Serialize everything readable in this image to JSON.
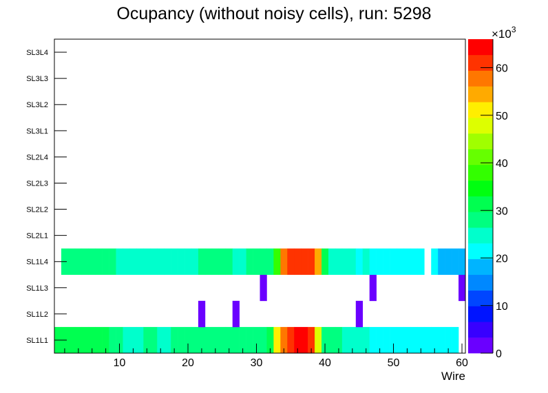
{
  "chart_data": {
    "type": "heatmap",
    "title": "Ocupancy (without noisy cells), run: 5298",
    "xlabel": "Wire",
    "ylabel": "",
    "xlim": [
      0.5,
      60.5
    ],
    "x_ticks": [
      "10",
      "20",
      "30",
      "40",
      "50",
      "60"
    ],
    "y_categories": [
      "SL1L1",
      "SL1L2",
      "SL1L3",
      "SL1L4",
      "SL2L1",
      "SL2L2",
      "SL2L3",
      "SL2L4",
      "SL3L1",
      "SL3L2",
      "SL3L3",
      "SL3L4"
    ],
    "zlim": [
      0,
      66000
    ],
    "z_multiplier_label": "×10",
    "z_multiplier_exp": "3",
    "z_ticks": [
      "0",
      "10",
      "20",
      "30",
      "40",
      "50",
      "60"
    ],
    "palette": [
      "#6a00ff",
      "#3800ff",
      "#0014ff",
      "#0046ff",
      "#0088ff",
      "#00b4ff",
      "#00ffff",
      "#00ffcc",
      "#00ff80",
      "#00ff50",
      "#00ff10",
      "#33ff00",
      "#66ff00",
      "#a0ff00",
      "#ddff00",
      "#ffee00",
      "#ffaa00",
      "#ff7700",
      "#ff3300",
      "#ff0000"
    ],
    "rows": [
      {
        "layer": "SL1L1",
        "bins": [
          [
            1,
            31000
          ],
          [
            2,
            31000
          ],
          [
            3,
            31000
          ],
          [
            4,
            31000
          ],
          [
            5,
            31000
          ],
          [
            6,
            31000
          ],
          [
            7,
            31000
          ],
          [
            8,
            31000
          ],
          [
            9,
            28000
          ],
          [
            10,
            28000
          ],
          [
            11,
            25000
          ],
          [
            12,
            25000
          ],
          [
            13,
            25000
          ],
          [
            14,
            28000
          ],
          [
            15,
            28000
          ],
          [
            16,
            25000
          ],
          [
            17,
            25000
          ],
          [
            18,
            28000
          ],
          [
            19,
            28000
          ],
          [
            20,
            28000
          ],
          [
            21,
            28000
          ],
          [
            22,
            28000
          ],
          [
            23,
            28000
          ],
          [
            24,
            28000
          ],
          [
            25,
            28000
          ],
          [
            26,
            28000
          ],
          [
            27,
            28000
          ],
          [
            28,
            28000
          ],
          [
            29,
            28000
          ],
          [
            30,
            28000
          ],
          [
            31,
            28000
          ],
          [
            32,
            31000
          ],
          [
            33,
            51000
          ],
          [
            34,
            58000
          ],
          [
            35,
            61000
          ],
          [
            36,
            64500
          ],
          [
            37,
            64500
          ],
          [
            38,
            61000
          ],
          [
            39,
            48000
          ],
          [
            40,
            28000
          ],
          [
            41,
            28000
          ],
          [
            42,
            28000
          ],
          [
            43,
            25000
          ],
          [
            44,
            25000
          ],
          [
            45,
            25000
          ],
          [
            46,
            25000
          ],
          [
            47,
            21000
          ],
          [
            48,
            21000
          ],
          [
            49,
            21000
          ],
          [
            50,
            21000
          ],
          [
            51,
            21000
          ],
          [
            52,
            21000
          ],
          [
            53,
            21000
          ],
          [
            54,
            21000
          ],
          [
            55,
            21000
          ],
          [
            56,
            21000
          ],
          [
            57,
            21000
          ],
          [
            58,
            21000
          ],
          [
            59,
            21000
          ]
        ]
      },
      {
        "layer": "SL1L2",
        "bins": [
          [
            22,
            1500
          ],
          [
            27,
            1500
          ],
          [
            45,
            1500
          ]
        ]
      },
      {
        "layer": "SL1L3",
        "bins": [
          [
            31,
            1500
          ],
          [
            47,
            1500
          ],
          [
            60,
            1500
          ]
        ]
      },
      {
        "layer": "SL1L4",
        "bins": [
          [
            2,
            28000
          ],
          [
            3,
            28000
          ],
          [
            4,
            28000
          ],
          [
            5,
            28000
          ],
          [
            6,
            28000
          ],
          [
            7,
            28000
          ],
          [
            8,
            28000
          ],
          [
            9,
            28000
          ],
          [
            10,
            25000
          ],
          [
            11,
            25000
          ],
          [
            12,
            25000
          ],
          [
            13,
            25000
          ],
          [
            14,
            25000
          ],
          [
            15,
            25000
          ],
          [
            16,
            25000
          ],
          [
            17,
            25000
          ],
          [
            18,
            25000
          ],
          [
            19,
            25000
          ],
          [
            20,
            25000
          ],
          [
            21,
            25000
          ],
          [
            22,
            28000
          ],
          [
            23,
            28000
          ],
          [
            24,
            28000
          ],
          [
            25,
            28000
          ],
          [
            26,
            28000
          ],
          [
            27,
            25000
          ],
          [
            28,
            25000
          ],
          [
            29,
            28000
          ],
          [
            30,
            28000
          ],
          [
            31,
            28000
          ],
          [
            32,
            28000
          ],
          [
            33,
            38000
          ],
          [
            34,
            58000
          ],
          [
            35,
            61000
          ],
          [
            36,
            61000
          ],
          [
            37,
            61000
          ],
          [
            38,
            61000
          ],
          [
            39,
            55000
          ],
          [
            40,
            31000
          ],
          [
            41,
            25000
          ],
          [
            42,
            25000
          ],
          [
            43,
            25000
          ],
          [
            44,
            25000
          ],
          [
            45,
            21000
          ],
          [
            46,
            25000
          ],
          [
            47,
            21000
          ],
          [
            48,
            21000
          ],
          [
            49,
            21000
          ],
          [
            50,
            21000
          ],
          [
            51,
            21000
          ],
          [
            52,
            21000
          ],
          [
            53,
            21000
          ],
          [
            54,
            21000
          ],
          [
            56,
            21000
          ],
          [
            57,
            18000
          ],
          [
            58,
            18000
          ],
          [
            59,
            18000
          ],
          [
            60,
            18000
          ]
        ]
      },
      {
        "layer": "SL2L1",
        "bins": []
      },
      {
        "layer": "SL2L2",
        "bins": []
      },
      {
        "layer": "SL2L3",
        "bins": []
      },
      {
        "layer": "SL2L4",
        "bins": []
      },
      {
        "layer": "SL3L1",
        "bins": []
      },
      {
        "layer": "SL3L2",
        "bins": []
      },
      {
        "layer": "SL3L3",
        "bins": []
      },
      {
        "layer": "SL3L4",
        "bins": []
      }
    ]
  }
}
